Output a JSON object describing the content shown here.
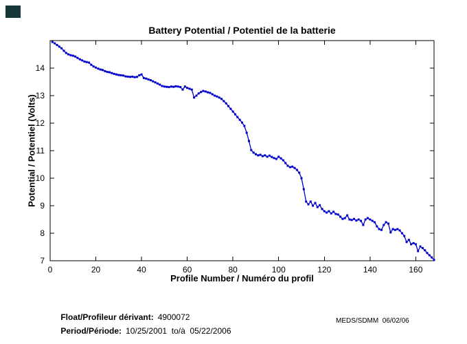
{
  "colors": {
    "line": "#0000CD",
    "axis": "#000000",
    "background": "#FFFFFF",
    "corner_mark": "#16383B"
  },
  "footer": {
    "float_label": "Float/Profileur dérivant:",
    "float_value": "4900072",
    "period_label": "Period/Période:",
    "period_value": "10/25/2001  to/à  05/22/2006",
    "stamp": "MEDS/SDMM  06/02/06"
  },
  "chart_data": {
    "type": "line",
    "title": "Battery Potential / Potentiel de la batterie",
    "xlabel": "Profile Number / Numéro du profil",
    "ylabel": "Potential / Potentiel (Volts)",
    "xlim": [
      0,
      168
    ],
    "ylim": [
      7,
      15
    ],
    "xticks": [
      0,
      20,
      40,
      60,
      80,
      100,
      120,
      140,
      160
    ],
    "yticks": [
      7,
      8,
      9,
      10,
      11,
      12,
      13,
      14
    ],
    "grid": false,
    "legend": "none",
    "marker": "square",
    "series": [
      {
        "name": "battery-potential-volts",
        "x_start": 1,
        "x_step": 1,
        "values": [
          14.95,
          14.9,
          14.84,
          14.78,
          14.72,
          14.63,
          14.55,
          14.5,
          14.47,
          14.45,
          14.42,
          14.37,
          14.32,
          14.28,
          14.24,
          14.22,
          14.2,
          14.12,
          14.06,
          14.02,
          13.98,
          13.95,
          13.93,
          13.89,
          13.86,
          13.85,
          13.82,
          13.79,
          13.77,
          13.75,
          13.74,
          13.73,
          13.7,
          13.69,
          13.68,
          13.69,
          13.67,
          13.68,
          13.74,
          13.77,
          13.64,
          13.62,
          13.59,
          13.56,
          13.52,
          13.48,
          13.44,
          13.4,
          13.35,
          13.33,
          13.32,
          13.31,
          13.33,
          13.32,
          13.34,
          13.33,
          13.31,
          13.22,
          13.33,
          13.28,
          13.25,
          13.22,
          12.93,
          13.0,
          13.08,
          13.13,
          13.17,
          13.15,
          13.12,
          13.1,
          13.05,
          13.0,
          12.97,
          12.93,
          12.88,
          12.8,
          12.72,
          12.62,
          12.52,
          12.42,
          12.32,
          12.22,
          12.12,
          12.02,
          11.9,
          11.65,
          11.35,
          11.02,
          10.93,
          10.87,
          10.83,
          10.85,
          10.8,
          10.83,
          10.78,
          10.82,
          10.77,
          10.73,
          10.7,
          10.78,
          10.72,
          10.65,
          10.55,
          10.45,
          10.4,
          10.42,
          10.37,
          10.3,
          10.2,
          10.0,
          9.6,
          9.15,
          9.05,
          9.15,
          9.0,
          9.1,
          8.95,
          9.02,
          8.88,
          8.8,
          8.75,
          8.8,
          8.72,
          8.78,
          8.7,
          8.68,
          8.6,
          8.52,
          8.55,
          8.65,
          8.5,
          8.48,
          8.52,
          8.46,
          8.5,
          8.45,
          8.3,
          8.5,
          8.55,
          8.5,
          8.45,
          8.4,
          8.25,
          8.15,
          8.12,
          8.3,
          8.4,
          8.35,
          8.03,
          8.15,
          8.12,
          8.15,
          8.1,
          8.0,
          7.9,
          7.68,
          7.76,
          7.6,
          7.64,
          7.6,
          7.35,
          7.52,
          7.46,
          7.38,
          7.28,
          7.2,
          7.12,
          7.03
        ]
      }
    ]
  }
}
